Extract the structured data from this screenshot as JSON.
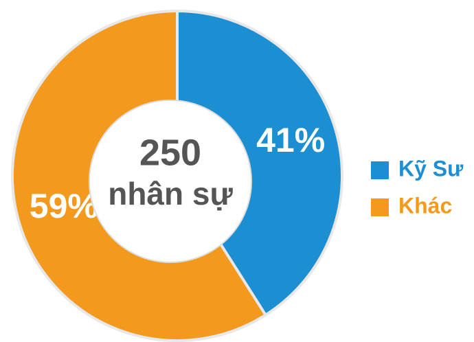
{
  "chart_data": {
    "type": "pie",
    "categories": [
      "Kỹ Sư",
      "Khác"
    ],
    "values": [
      41,
      59
    ],
    "value_labels": [
      "41%",
      "59%"
    ],
    "colors": [
      "#1b8fd2",
      "#f39a1e"
    ],
    "annotations": [
      "250",
      "nhân sự"
    ],
    "legend": "right"
  }
}
